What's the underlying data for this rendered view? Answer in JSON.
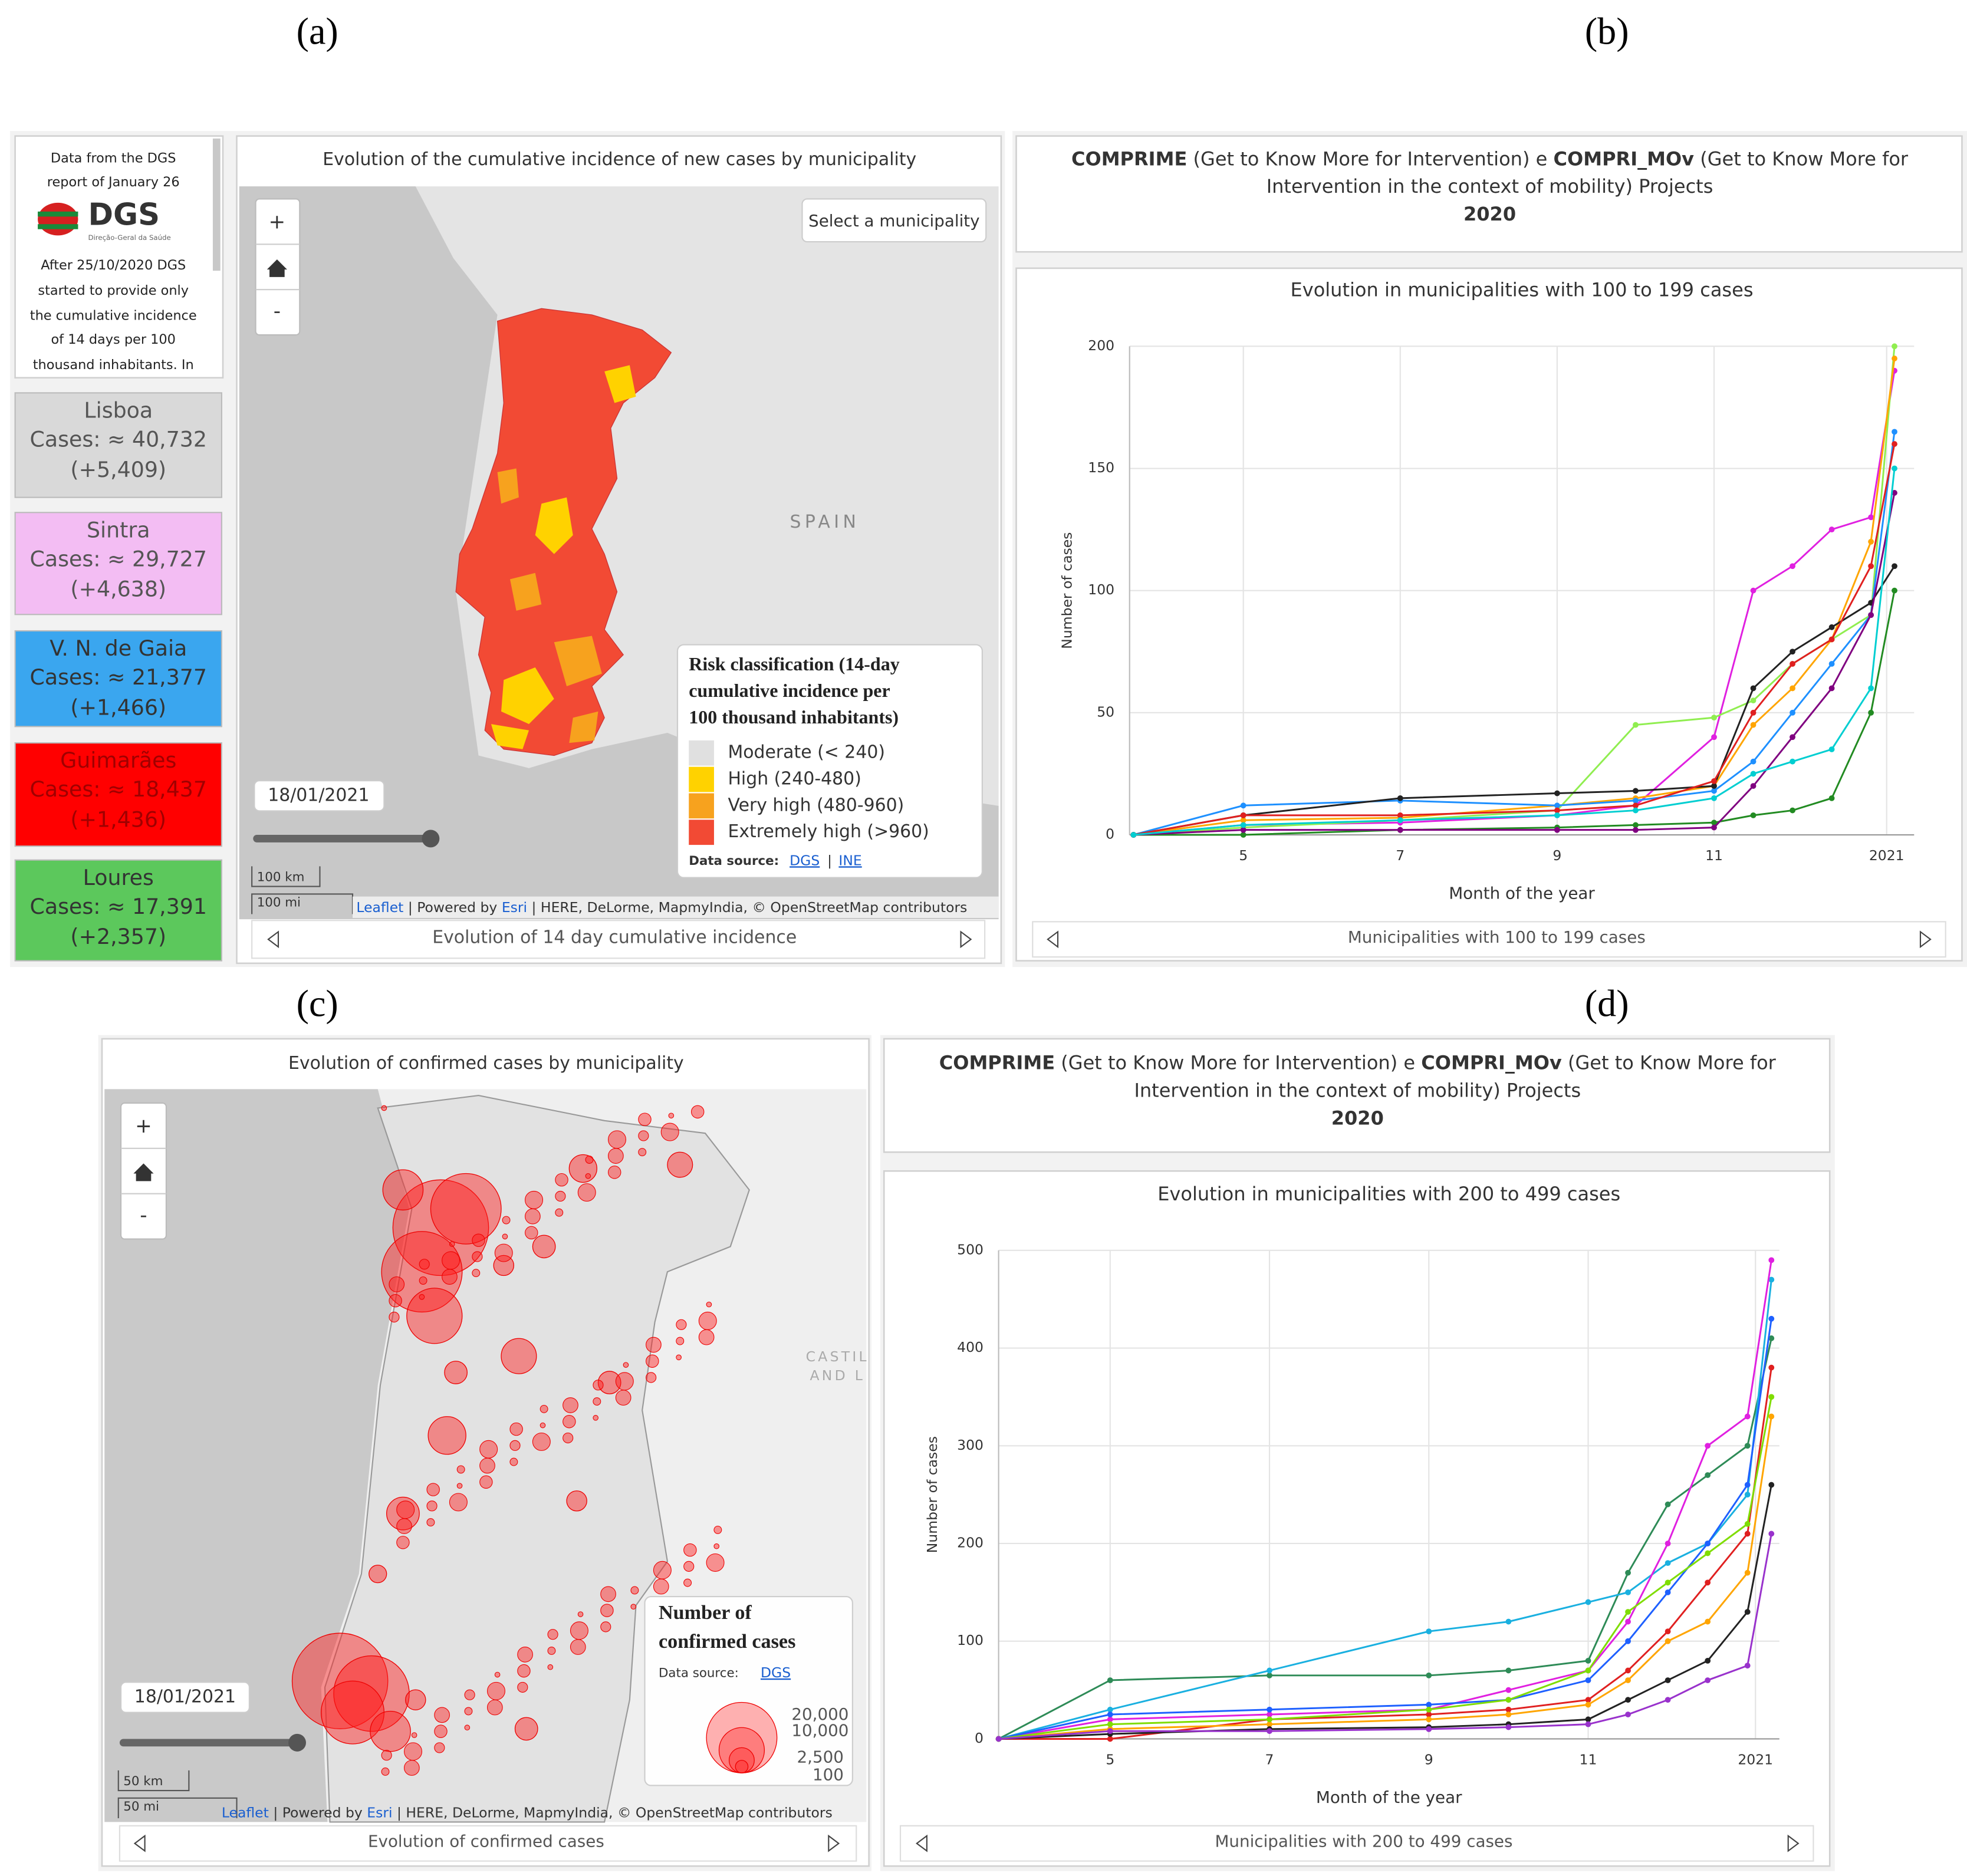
{
  "panel_labels": {
    "a": "(a)",
    "b": "(b)",
    "c": "(c)",
    "d": "(d)"
  },
  "panel_a": {
    "sidebar": {
      "lines_top": [
        "Data from the DGS",
        "report of January 26"
      ],
      "logo": "DGS",
      "logo_sub": "Direção-Geral da Saúde",
      "lines_bottom": [
        "After 25/10/2020 DGS",
        "started to provide only",
        "the cumulative incidence",
        "of 14 days per 100",
        "thousand inhabitants. In"
      ]
    },
    "cities": [
      {
        "name": "Lisboa",
        "cases": "Cases: ≈ 40,732",
        "change": "(+5,409)"
      },
      {
        "name": "Sintra",
        "cases": "Cases: ≈ 29,727",
        "change": "(+4,638)"
      },
      {
        "name": "V. N. de Gaia",
        "cases": "Cases: ≈ 21,377",
        "change": "(+1,466)"
      },
      {
        "name": "Guimarães",
        "cases": "Cases: ≈ 18,437",
        "change": "(+1,436)"
      },
      {
        "name": "Loures",
        "cases": "Cases: ≈ 17,391",
        "change": "(+2,357)"
      }
    ],
    "title": "Evolution of the cumulative incidence of new cases by municipality",
    "zoom": [
      "+",
      "-"
    ],
    "select": "Select a municipality",
    "country": "SPAIN",
    "legend": {
      "title": [
        "Risk classification (14-day",
        "cumulative incidence per",
        "100 thousand inhabitants)"
      ],
      "items": [
        {
          "label": "Moderate (< 240)",
          "color": "#e0e0e0"
        },
        {
          "label": "High (240-480)",
          "color": "#ffd200"
        },
        {
          "label": "Very high (480-960)",
          "color": "#f7a21e"
        },
        {
          "label": "Extremely high (>960)",
          "color": "#f24a34"
        }
      ],
      "source": "Data source:",
      "source_links": [
        "DGS",
        "INE"
      ],
      "separator": "|"
    },
    "date": "18/01/2021",
    "scale": [
      "100 km",
      "100 mi"
    ],
    "attribution": [
      "Leaflet",
      "| Powered by",
      "Esri",
      "| HERE, DeLorme, MapmyIndia, © OpenStreetMap contributors"
    ],
    "footer": "Evolution of 14 day cumulative incidence"
  },
  "panel_b": {
    "header": {
      "line1": [
        "COMPRIME",
        "(Get to Know More for Intervention) e",
        "COMPRI_MOv",
        "(Get to Know More for"
      ],
      "line2": "Intervention in the context of mobility) Projects",
      "year": "2020"
    }
  },
  "panel_c": {
    "title": "Evolution of confirmed cases by municipality",
    "zoom": [
      "+",
      "-"
    ],
    "region": [
      "CASTIL",
      "AND L"
    ],
    "legend": {
      "title": [
        "Number of",
        "confirmed cases"
      ],
      "source": "Data source:",
      "source_link": "DGS",
      "sizes": [
        "20,000",
        "10,000",
        "2,500",
        "100"
      ]
    },
    "date": "18/01/2021",
    "scale": [
      "50 km",
      "50 mi"
    ],
    "attribution": [
      "Leaflet",
      "| Powered by",
      "Esri",
      "| HERE, DeLorme, MapmyIndia, © OpenStreetMap contributors"
    ],
    "footer": "Evolution of confirmed cases"
  },
  "panel_d": {
    "header": {
      "line1": [
        "COMPRIME",
        "(Get to Know More for Intervention) e",
        "COMPRI_MOv",
        "(Get to Know More for"
      ],
      "line2": "Intervention in the context of mobility) Projects",
      "year": "2020"
    }
  },
  "chart_data": [
    {
      "type": "line",
      "title": "Evolution in municipalities with 100 to 199 cases",
      "caption": "Municipalities with 100 to 199 cases",
      "x_label": "Month of the year",
      "y_label": "Number of cases",
      "x": [
        3.6,
        5,
        7,
        9,
        10,
        11,
        11.5,
        12,
        12.5,
        13,
        13.3
      ],
      "xlim": [
        3.55,
        13.55
      ],
      "xticks": [
        5,
        7,
        9,
        11,
        {
          "value": 13.2,
          "label": "2021"
        }
      ],
      "ylim": [
        0,
        200
      ],
      "yticks": [
        0,
        50,
        100,
        150,
        200
      ],
      "grid": true,
      "series": [
        {
          "color": "#e020e0",
          "values": [
            0,
            4,
            5,
            8,
            12,
            40,
            100,
            110,
            125,
            130,
            190
          ]
        },
        {
          "color": "#90ee50",
          "values": [
            0,
            3,
            6,
            10,
            45,
            48,
            55,
            70,
            80,
            90,
            200
          ]
        },
        {
          "color": "#ffa500",
          "values": [
            0,
            6,
            7,
            12,
            15,
            20,
            45,
            60,
            80,
            120,
            195
          ]
        },
        {
          "color": "#1e90ff",
          "values": [
            0,
            12,
            14,
            12,
            14,
            18,
            30,
            50,
            70,
            90,
            165
          ]
        },
        {
          "color": "#222222",
          "values": [
            0,
            8,
            15,
            17,
            18,
            20,
            60,
            75,
            85,
            95,
            110
          ]
        },
        {
          "color": "#228b22",
          "values": [
            0,
            0,
            2,
            3,
            4,
            5,
            8,
            10,
            15,
            50,
            100
          ]
        },
        {
          "color": "#800080",
          "values": [
            0,
            2,
            2,
            2,
            2,
            3,
            20,
            40,
            60,
            90,
            140
          ]
        },
        {
          "color": "#e02020",
          "values": [
            0,
            8,
            8,
            10,
            12,
            22,
            50,
            70,
            80,
            110,
            160
          ]
        },
        {
          "color": "#00ced1",
          "values": [
            0,
            4,
            6,
            8,
            10,
            15,
            25,
            30,
            35,
            60,
            150
          ]
        }
      ]
    },
    {
      "type": "line",
      "title": "Evolution in municipalities with 200 to 499 cases",
      "caption": "Municipalities with 200 to 499 cases",
      "x_label": "Month of the year",
      "y_label": "Number of cases",
      "x": [
        3.6,
        5,
        7,
        9,
        10,
        11,
        11.5,
        12,
        12.5,
        13,
        13.3
      ],
      "xlim": [
        3.6,
        13.4
      ],
      "xticks": [
        5,
        7,
        9,
        11,
        {
          "value": 13.1,
          "label": "2021"
        }
      ],
      "ylim": [
        0,
        500
      ],
      "yticks": [
        0,
        100,
        200,
        300,
        400,
        500
      ],
      "grid": true,
      "series": [
        {
          "color": "#2e8b57",
          "values": [
            0,
            60,
            65,
            65,
            70,
            80,
            170,
            240,
            270,
            300,
            410
          ]
        },
        {
          "color": "#1ab0e0",
          "values": [
            0,
            30,
            70,
            110,
            120,
            140,
            150,
            180,
            200,
            250,
            470
          ]
        },
        {
          "color": "#e020e0",
          "values": [
            0,
            20,
            25,
            30,
            50,
            70,
            120,
            200,
            300,
            330,
            490
          ]
        },
        {
          "color": "#e02020",
          "values": [
            0,
            0,
            20,
            25,
            30,
            40,
            70,
            110,
            160,
            210,
            380
          ]
        },
        {
          "color": "#1e60ff",
          "values": [
            0,
            25,
            30,
            35,
            40,
            60,
            100,
            150,
            200,
            260,
            430
          ]
        },
        {
          "color": "#ffa500",
          "values": [
            0,
            10,
            15,
            20,
            25,
            35,
            60,
            100,
            120,
            170,
            330
          ]
        },
        {
          "color": "#222222",
          "values": [
            0,
            5,
            10,
            12,
            15,
            20,
            40,
            60,
            80,
            130,
            260
          ]
        },
        {
          "color": "#7fdd00",
          "values": [
            0,
            15,
            20,
            30,
            40,
            70,
            130,
            160,
            190,
            220,
            350
          ]
        },
        {
          "color": "#9932cc",
          "values": [
            0,
            8,
            8,
            10,
            12,
            15,
            25,
            40,
            60,
            75,
            210
          ]
        }
      ]
    }
  ]
}
